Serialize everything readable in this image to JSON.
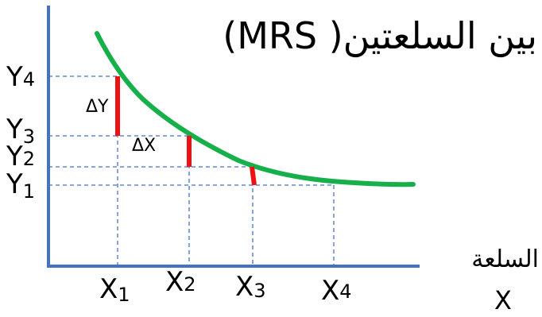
{
  "title": "بين السلعتين( MRS)",
  "x_axis_label": {
    "line1": "السلعة",
    "line2": "X"
  },
  "y_labels": [
    {
      "letter": "Y",
      "sub": "4"
    },
    {
      "letter": "Y",
      "sub": "3"
    },
    {
      "letter": "Y",
      "sub": "2"
    },
    {
      "letter": "Y",
      "sub": "1"
    }
  ],
  "x_labels": [
    {
      "letter": "X",
      "sub": "1"
    },
    {
      "letter": "X",
      "sub": "2"
    },
    {
      "letter": "X",
      "sub": "3"
    },
    {
      "letter": "X",
      "sub": "4"
    }
  ],
  "delta_y": "ΔY",
  "delta_x": "ΔX",
  "colors": {
    "axis": "#4472c4",
    "curve": "#16b04a",
    "delta": "#ee1111",
    "guide": "#4472c4",
    "text": "#000000"
  }
}
